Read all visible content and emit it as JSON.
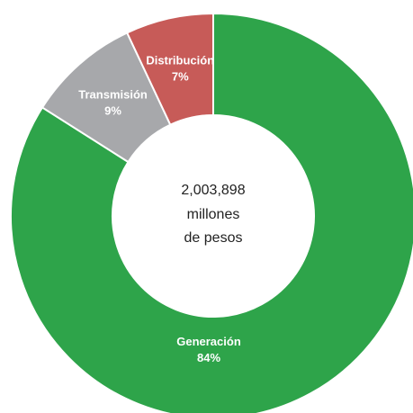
{
  "chart_data": {
    "type": "pie",
    "center_label": [
      "2,003,898",
      "millones",
      "de pesos"
    ],
    "slices": [
      {
        "name": "Generación",
        "percent_label": "84%",
        "value": 84,
        "color": "#2ea44a"
      },
      {
        "name": "Transmisión",
        "percent_label": "9%",
        "value": 9,
        "color": "#a7a8ab"
      },
      {
        "name": "Distribución",
        "percent_label": "7%",
        "value": 7,
        "color": "#c75b58"
      }
    ]
  }
}
